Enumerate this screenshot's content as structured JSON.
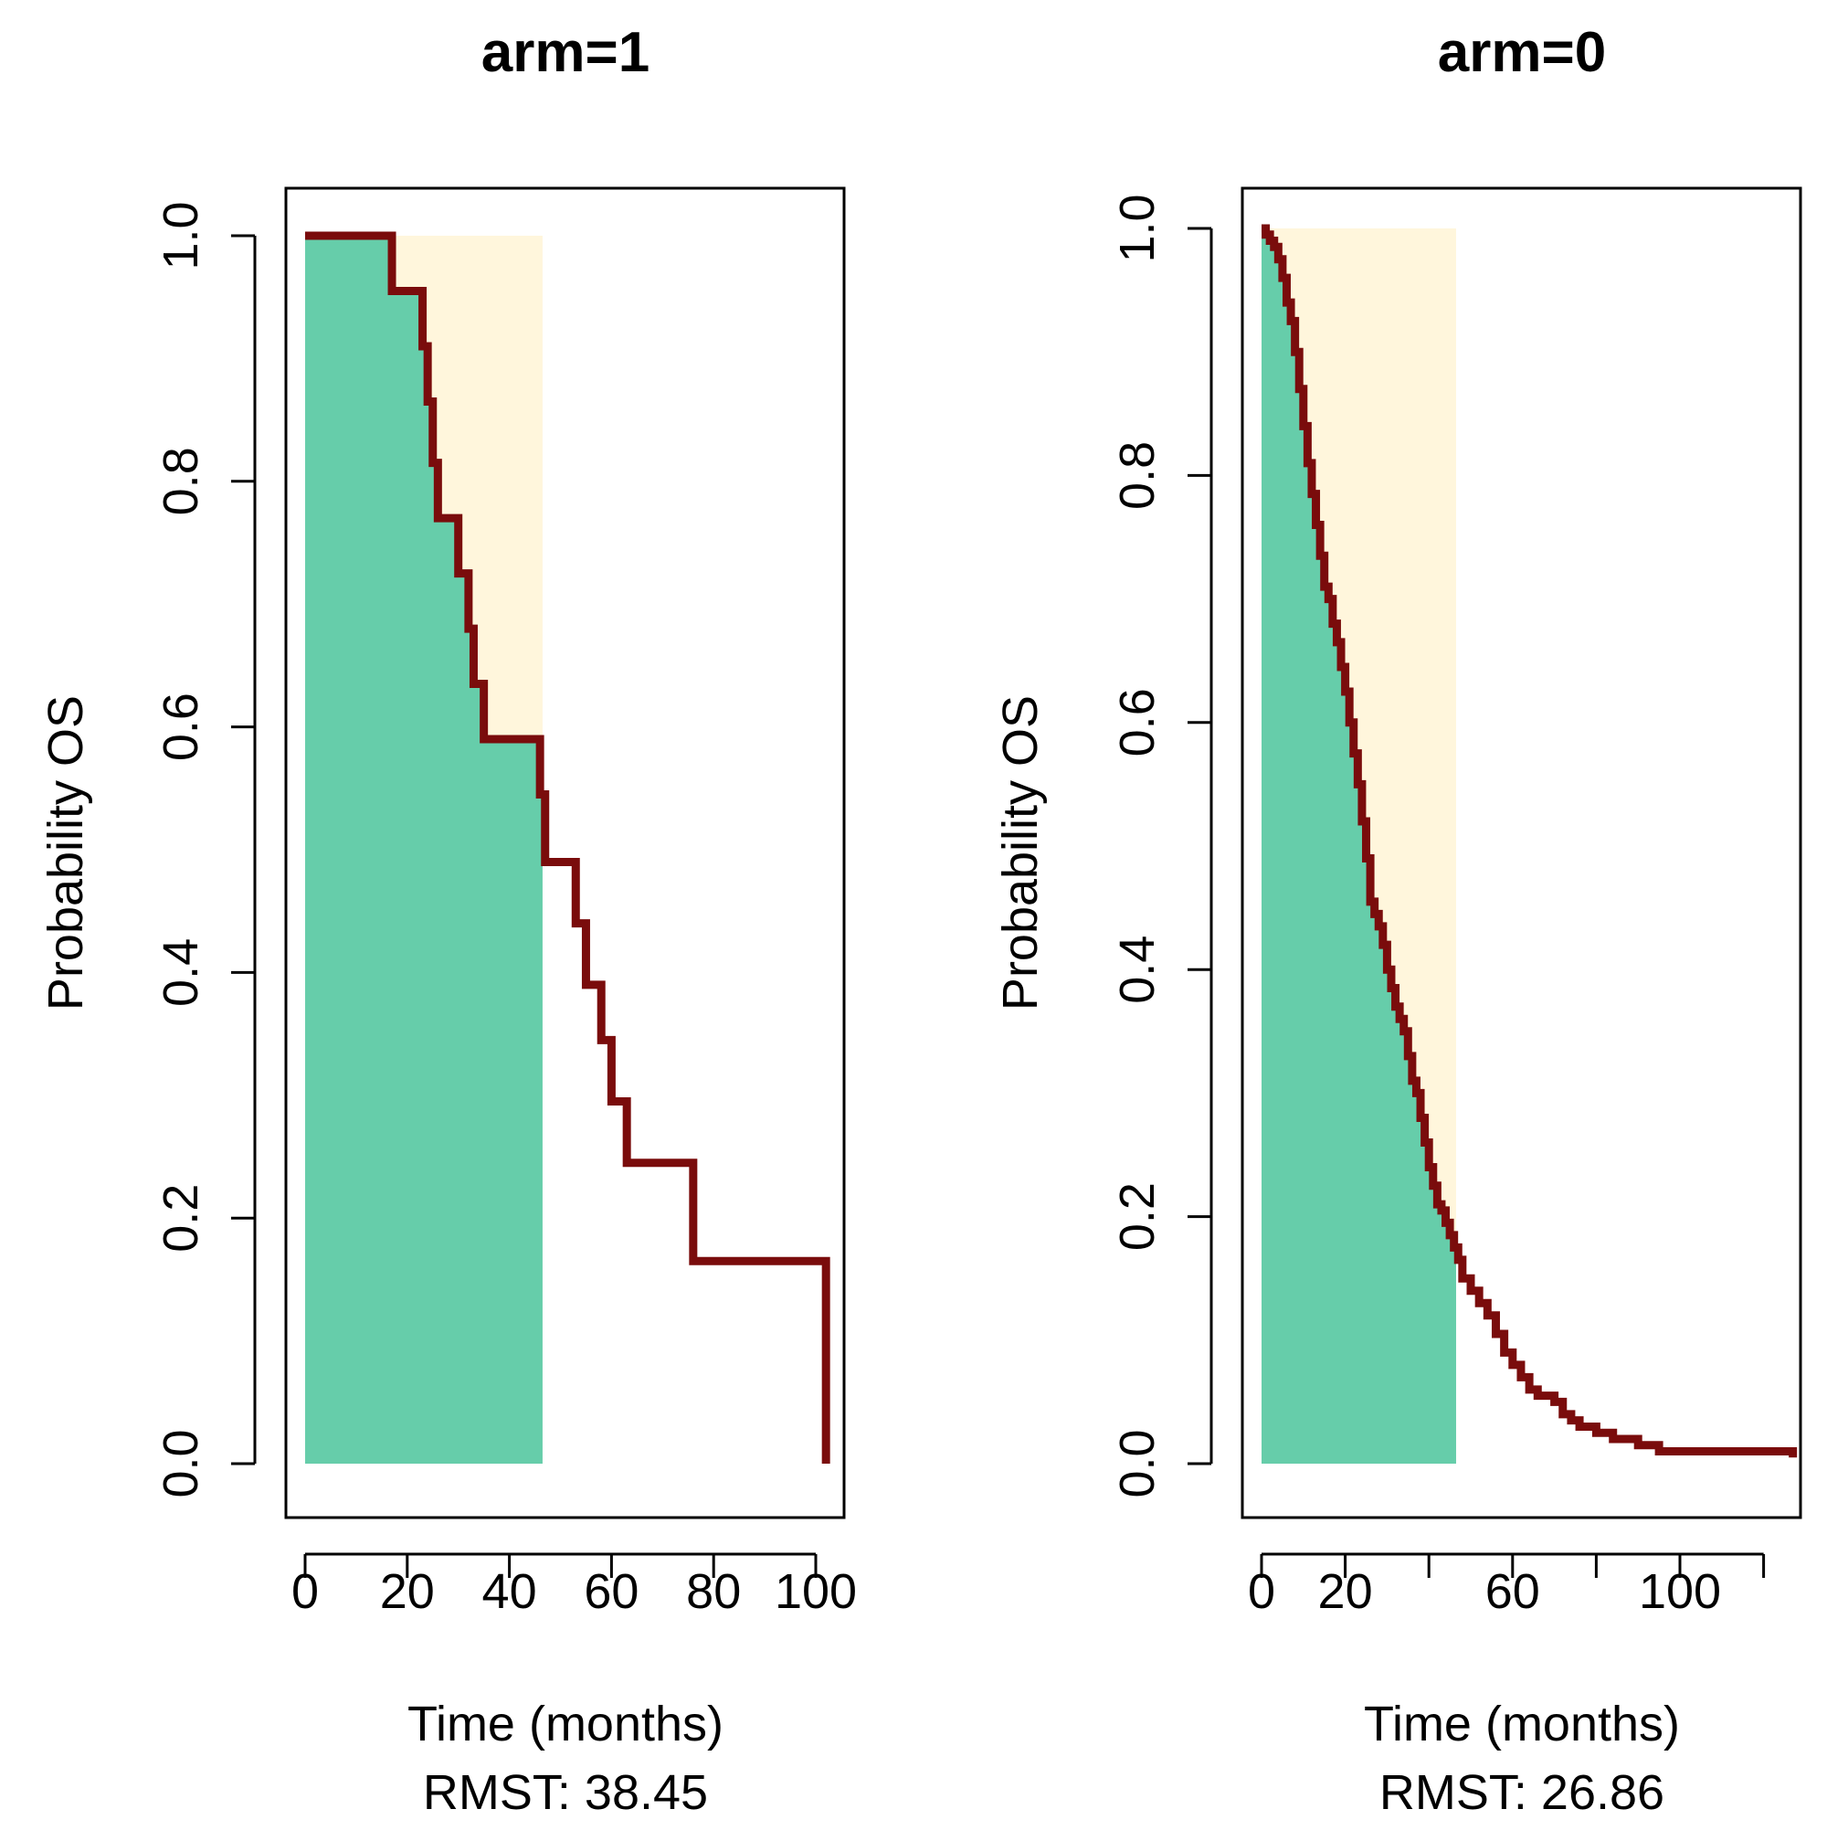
{
  "chart_data": [
    {
      "type": "line",
      "subtype": "step",
      "title": "arm=1",
      "xlabel": "Time (months)",
      "ylabel": "Probability OS",
      "rmst_label": "RMST: 38.45",
      "xlim": [
        0,
        106
      ],
      "ylim": [
        0,
        1.05
      ],
      "xticks": [
        0,
        20,
        40,
        60,
        80,
        100
      ],
      "xtick_labels": [
        "0",
        "20",
        "40",
        "60",
        "80",
        "100"
      ],
      "yticks": [
        0,
        0.2,
        0.4,
        0.6,
        0.8,
        1.0
      ],
      "ytick_labels": [
        "0.0",
        "0.2",
        "0.4",
        "0.6",
        "0.8",
        "1.0"
      ],
      "tau": 46.5,
      "colors": {
        "curve": "#7a0c0c",
        "area": "#66cdaa",
        "gap": "#fff6dc"
      },
      "series": [
        {
          "name": "arm=1",
          "times": [
            0,
            17,
            23,
            24,
            25,
            26,
            30,
            32,
            33,
            35,
            39,
            46,
            47,
            53,
            55,
            58,
            60,
            63,
            76,
            102
          ],
          "survival": [
            1.0,
            0.955,
            0.91,
            0.865,
            0.815,
            0.77,
            0.725,
            0.68,
            0.635,
            0.59,
            0.59,
            0.545,
            0.49,
            0.44,
            0.39,
            0.345,
            0.295,
            0.245,
            0.165,
            0.0
          ]
        }
      ]
    },
    {
      "type": "line",
      "subtype": "step",
      "title": "arm=0",
      "xlabel": "Time (months)",
      "ylabel": "Probability OS",
      "rmst_label": "RMST: 26.86",
      "xlim": [
        0,
        129
      ],
      "ylim": [
        0,
        1.05
      ],
      "xticks": [
        0,
        20,
        40,
        60,
        80,
        100,
        120
      ],
      "xtick_labels": [
        "0",
        "20",
        "",
        "60",
        "",
        "100",
        ""
      ],
      "yticks": [
        0,
        0.2,
        0.4,
        0.6,
        0.8,
        1.0
      ],
      "ytick_labels": [
        "0.0",
        "0.2",
        "0.4",
        "0.6",
        "0.8",
        "1.0"
      ],
      "tau": 46.5,
      "colors": {
        "curve": "#7a0c0c",
        "area": "#66cdaa",
        "gap": "#fff6dc"
      },
      "series": [
        {
          "name": "arm=0",
          "times": [
            0,
            1,
            2,
            3,
            4,
            5,
            6,
            7,
            8,
            9,
            10,
            11,
            12,
            13,
            14,
            15,
            16,
            17,
            18,
            19,
            20,
            21,
            22,
            23,
            24,
            25,
            26,
            27,
            28,
            29,
            30,
            31,
            32,
            33,
            34,
            35,
            36,
            37,
            38,
            39,
            40,
            41,
            42,
            43,
            44,
            45,
            46,
            47,
            48,
            50,
            52,
            54,
            56,
            58,
            60,
            62,
            64,
            66,
            68,
            70,
            72,
            74,
            76,
            80,
            84,
            90,
            95,
            100,
            110,
            120,
            127
          ],
          "survival": [
            1.0,
            0.995,
            0.99,
            0.985,
            0.975,
            0.96,
            0.94,
            0.925,
            0.9,
            0.87,
            0.84,
            0.81,
            0.785,
            0.76,
            0.735,
            0.71,
            0.7,
            0.68,
            0.665,
            0.645,
            0.625,
            0.6,
            0.575,
            0.55,
            0.52,
            0.49,
            0.455,
            0.445,
            0.435,
            0.42,
            0.4,
            0.385,
            0.37,
            0.36,
            0.35,
            0.33,
            0.31,
            0.3,
            0.28,
            0.26,
            0.24,
            0.225,
            0.21,
            0.205,
            0.195,
            0.185,
            0.175,
            0.165,
            0.15,
            0.14,
            0.13,
            0.12,
            0.105,
            0.09,
            0.08,
            0.07,
            0.06,
            0.055,
            0.055,
            0.05,
            0.04,
            0.035,
            0.03,
            0.025,
            0.02,
            0.015,
            0.01,
            0.01,
            0.01,
            0.01,
            0.005
          ]
        }
      ]
    }
  ]
}
